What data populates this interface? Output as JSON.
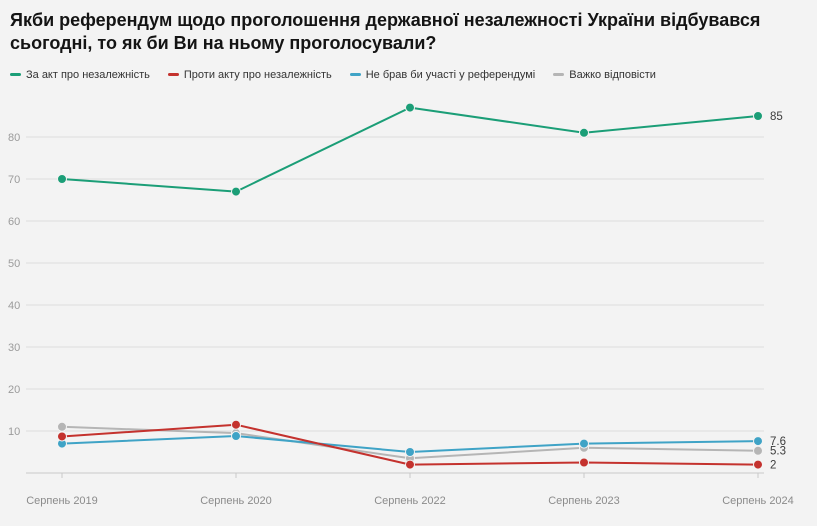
{
  "chart_data": {
    "type": "line",
    "title": "Якби референдум щодо проголошення державної незалежності України відбувався сьогодні, то як би Ви на ньому проголосували?",
    "categories": [
      "Серпень 2019",
      "Серпень 2020",
      "Серпень 2022",
      "Серпень 2023",
      "Серпень 2024"
    ],
    "series": [
      {
        "name": "За акт про незалежність",
        "color": "#1b9e77",
        "values": [
          70,
          67,
          87,
          81,
          85
        ],
        "end_label": "85"
      },
      {
        "name": "Проти акту про незалежність",
        "color": "#c4322e",
        "values": [
          8.7,
          11.5,
          2,
          2.5,
          2
        ],
        "end_label": "2"
      },
      {
        "name": "Не брав би участі у референдумі",
        "color": "#3fa3c6",
        "values": [
          7,
          8.8,
          5,
          7,
          7.6
        ],
        "end_label": "7.6"
      },
      {
        "name": "Важко відповісти",
        "color": "#b5b5b5",
        "values": [
          11,
          9.5,
          3.5,
          6,
          5.3
        ],
        "end_label": "5.3"
      }
    ],
    "ylim": [
      0,
      90
    ],
    "yticks": [
      10,
      20,
      30,
      40,
      50,
      60,
      70,
      80
    ],
    "grid": true,
    "legend_position": "top",
    "colors": {
      "background": "#f3f3f3",
      "gridline": "#dcdcdc",
      "axis": "#c8c8c8",
      "tick_label": "#9b9b9b",
      "end_label": "#3c3c3c"
    }
  }
}
